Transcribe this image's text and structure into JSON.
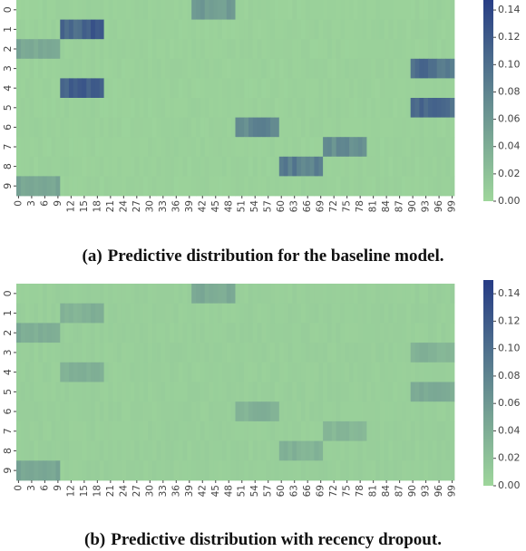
{
  "chart_data": [
    {
      "type": "heatmap",
      "caption_tag": "(a)",
      "caption_text": "Predictive distribution for the baseline model.",
      "y_labels": [
        "0",
        "1",
        "2",
        "3",
        "4",
        "5",
        "6",
        "7",
        "8",
        "9"
      ],
      "x_tick_labels": [
        "0",
        "3",
        "6",
        "9",
        "12",
        "15",
        "18",
        "21",
        "24",
        "27",
        "30",
        "33",
        "36",
        "39",
        "42",
        "45",
        "48",
        "51",
        "54",
        "57",
        "60",
        "63",
        "66",
        "69",
        "72",
        "75",
        "78",
        "81",
        "84",
        "87",
        "90",
        "93",
        "96",
        "99"
      ],
      "x_count": 100,
      "colorbar_ticks": [
        "0.00",
        "0.02",
        "0.04",
        "0.06",
        "0.08",
        "0.10",
        "0.12",
        "0.14"
      ],
      "value_range": [
        0,
        0.15
      ],
      "background_value": 0.005,
      "blocks": [
        {
          "row": 0,
          "x_from": 40,
          "x_to": 49,
          "value": 0.06
        },
        {
          "row": 1,
          "x_from": 10,
          "x_to": 19,
          "value": 0.11
        },
        {
          "row": 2,
          "x_from": 0,
          "x_to": 9,
          "value": 0.045
        },
        {
          "row": 3,
          "x_from": 90,
          "x_to": 99,
          "value": 0.1
        },
        {
          "row": 4,
          "x_from": 10,
          "x_to": 19,
          "value": 0.11
        },
        {
          "row": 5,
          "x_from": 90,
          "x_to": 99,
          "value": 0.1
        },
        {
          "row": 6,
          "x_from": 50,
          "x_to": 59,
          "value": 0.075
        },
        {
          "row": 7,
          "x_from": 70,
          "x_to": 79,
          "value": 0.07
        },
        {
          "row": 8,
          "x_from": 60,
          "x_to": 69,
          "value": 0.085
        },
        {
          "row": 9,
          "x_from": 0,
          "x_to": 9,
          "value": 0.045
        }
      ],
      "colors": {
        "low": "#9ed69b",
        "high": "#263b85"
      }
    },
    {
      "type": "heatmap",
      "caption_tag": "(b)",
      "caption_text": "Predictive distribution with recency dropout.",
      "y_labels": [
        "0",
        "1",
        "2",
        "3",
        "4",
        "5",
        "6",
        "7",
        "8",
        "9"
      ],
      "x_tick_labels": [
        "0",
        "3",
        "6",
        "9",
        "12",
        "15",
        "18",
        "21",
        "24",
        "27",
        "30",
        "33",
        "36",
        "39",
        "42",
        "45",
        "48",
        "51",
        "54",
        "57",
        "60",
        "63",
        "66",
        "69",
        "72",
        "75",
        "78",
        "81",
        "84",
        "87",
        "90",
        "93",
        "96",
        "99"
      ],
      "x_count": 100,
      "colorbar_ticks": [
        "0.00",
        "0.02",
        "0.04",
        "0.06",
        "0.08",
        "0.10",
        "0.12",
        "0.14"
      ],
      "value_range": [
        0,
        0.15
      ],
      "background_value": 0.007,
      "blocks": [
        {
          "row": 0,
          "x_from": 40,
          "x_to": 49,
          "value": 0.045
        },
        {
          "row": 1,
          "x_from": 10,
          "x_to": 19,
          "value": 0.035
        },
        {
          "row": 2,
          "x_from": 0,
          "x_to": 9,
          "value": 0.04
        },
        {
          "row": 3,
          "x_from": 90,
          "x_to": 99,
          "value": 0.035
        },
        {
          "row": 4,
          "x_from": 10,
          "x_to": 19,
          "value": 0.035
        },
        {
          "row": 5,
          "x_from": 90,
          "x_to": 99,
          "value": 0.04
        },
        {
          "row": 6,
          "x_from": 50,
          "x_to": 59,
          "value": 0.035
        },
        {
          "row": 7,
          "x_from": 70,
          "x_to": 79,
          "value": 0.03
        },
        {
          "row": 8,
          "x_from": 60,
          "x_to": 69,
          "value": 0.035
        },
        {
          "row": 9,
          "x_from": 0,
          "x_to": 9,
          "value": 0.045
        }
      ],
      "colors": {
        "low": "#9ed69b",
        "high": "#263b85"
      }
    }
  ]
}
